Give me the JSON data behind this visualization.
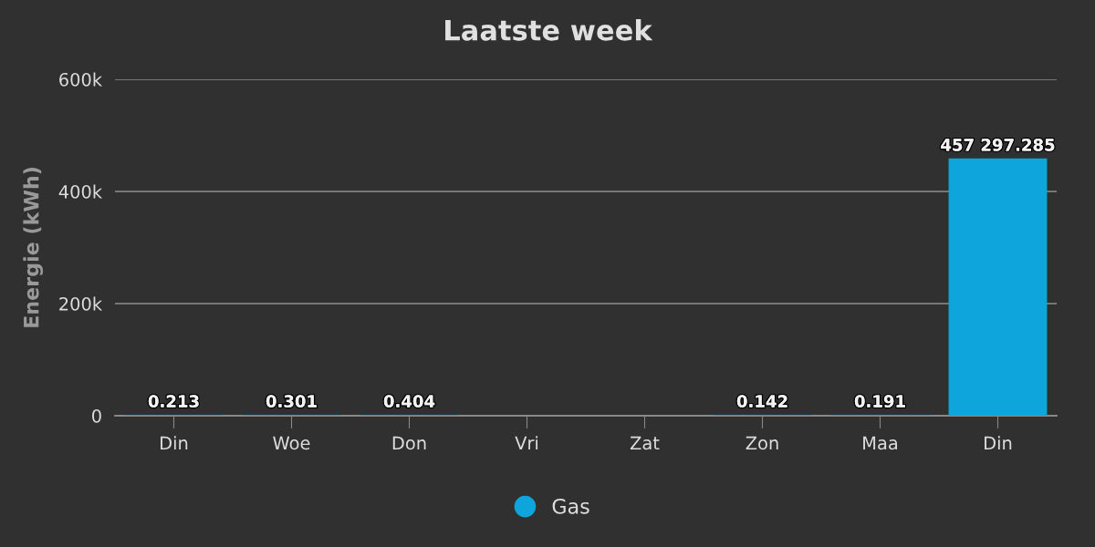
{
  "chart_data": {
    "type": "bar",
    "title": "Laatste week",
    "ylabel": "Energie (kWh)",
    "categories": [
      "Din",
      "Woe",
      "Don",
      "Vri",
      "Zat",
      "Zon",
      "Maa",
      "Din"
    ],
    "series": [
      {
        "name": "Gas",
        "color": "#0ea5dc",
        "values": [
          0.213,
          0.301,
          0.404,
          null,
          null,
          0.142,
          0.191,
          457297.285
        ],
        "value_labels": [
          "0.213",
          "0.301",
          "0.404",
          null,
          null,
          "0.142",
          "0.191",
          "457 297.285"
        ]
      }
    ],
    "ylim": [
      0,
      600000
    ],
    "yticks": [
      {
        "value": 0,
        "label": "0"
      },
      {
        "value": 200000,
        "label": "200k"
      },
      {
        "value": 400000,
        "label": "400k"
      },
      {
        "value": 600000,
        "label": "600k"
      }
    ],
    "grid": "y",
    "legend": "bottom"
  }
}
